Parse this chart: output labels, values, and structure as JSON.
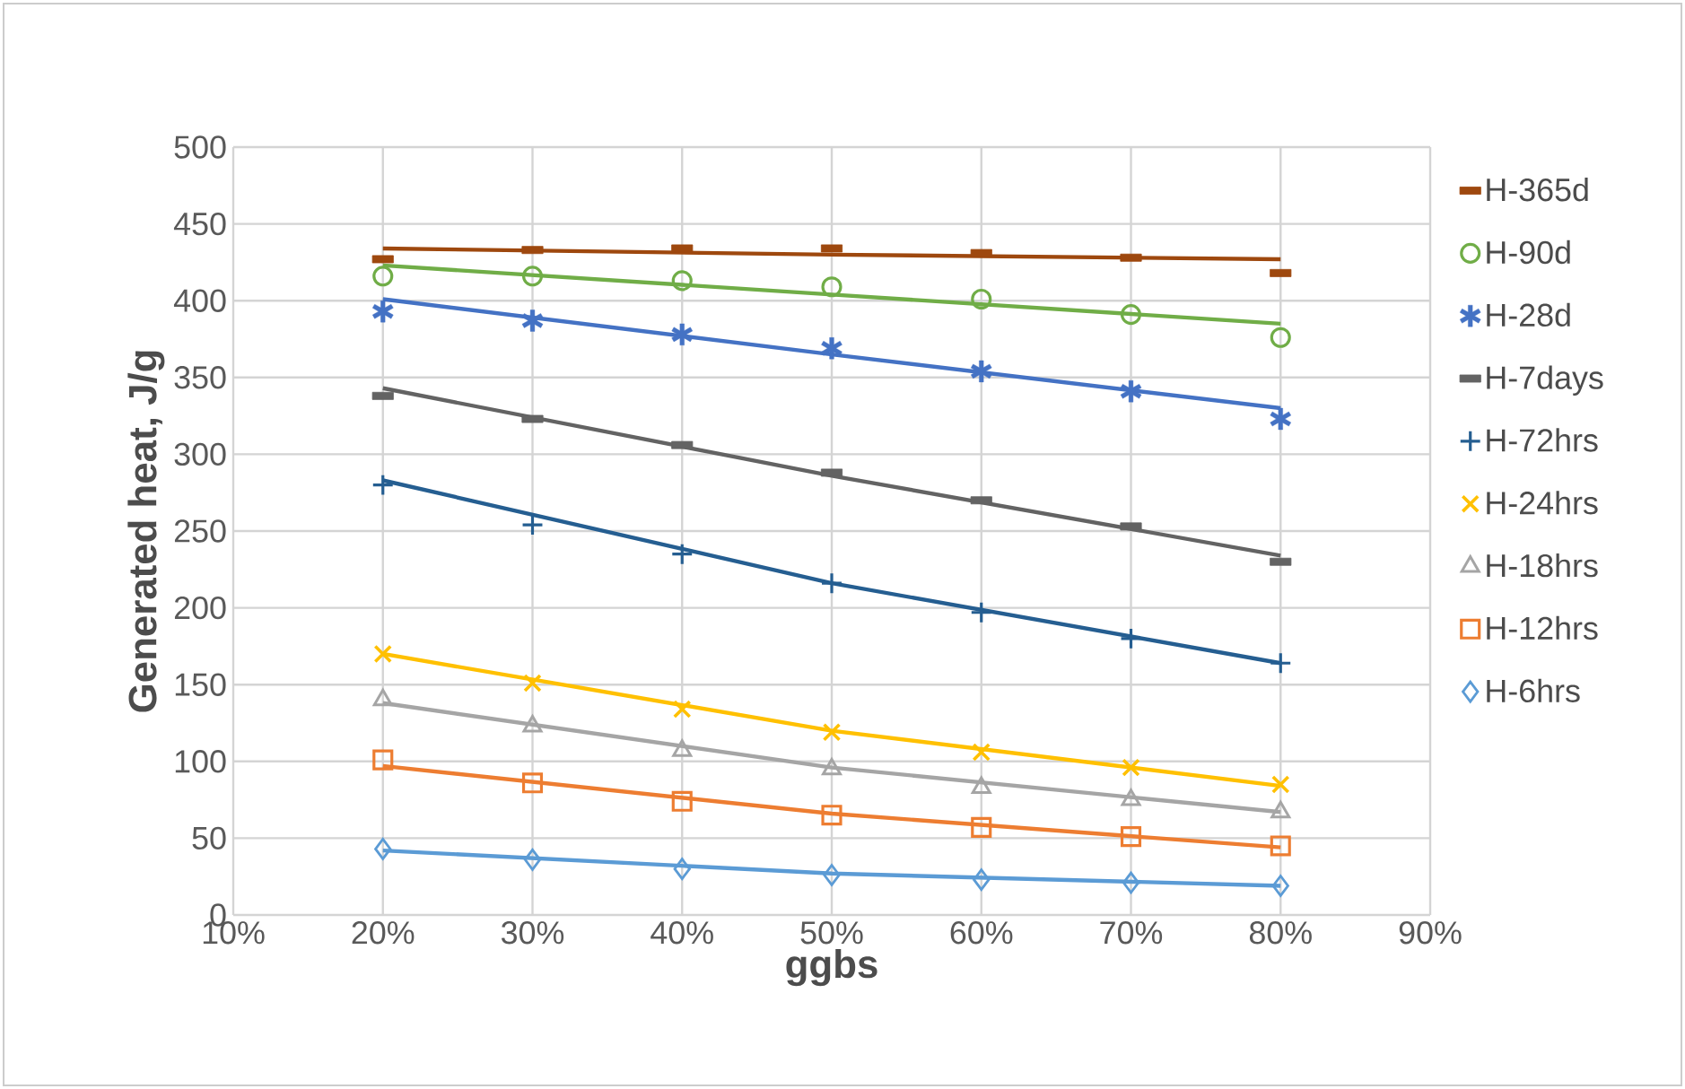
{
  "chart_data": {
    "type": "scatter",
    "xlabel": "ggbs",
    "ylabel": "Generated heat, J/g",
    "xlim": [
      10,
      90
    ],
    "xticks": [
      {
        "value": 10,
        "label": "10%"
      },
      {
        "value": 20,
        "label": "20%"
      },
      {
        "value": 30,
        "label": "30%"
      },
      {
        "value": 40,
        "label": "40%"
      },
      {
        "value": 50,
        "label": "50%"
      },
      {
        "value": 60,
        "label": "60%"
      },
      {
        "value": 70,
        "label": "70%"
      },
      {
        "value": 80,
        "label": "80%"
      },
      {
        "value": 90,
        "label": "90%"
      }
    ],
    "ylim": [
      0,
      500
    ],
    "yticks": [
      0,
      50,
      100,
      150,
      200,
      250,
      300,
      350,
      400,
      450,
      500
    ],
    "grid": true,
    "legend": "right",
    "x": [
      20,
      30,
      40,
      50,
      60,
      70,
      80
    ],
    "series": [
      {
        "name": "H-365d",
        "color": "#9e480e",
        "values": [
          427,
          433,
          434,
          434,
          431,
          428,
          418
        ]
      },
      {
        "name": "H-90d",
        "color": "#70ad47",
        "marker": "circle",
        "values": [
          416,
          416,
          413,
          409,
          401,
          391,
          376
        ]
      },
      {
        "name": "H-28d",
        "color": "#4472c4",
        "marker": "star",
        "values": [
          393,
          387,
          378,
          369,
          354,
          341,
          323
        ]
      },
      {
        "name": "H-7days",
        "color": "#636363",
        "values": [
          338,
          323,
          306,
          288,
          270,
          253,
          230
        ]
      },
      {
        "name": "H-72hrs",
        "color": "#255e91",
        "marker": "plus",
        "values": [
          280,
          254,
          235,
          216,
          197,
          180,
          164
        ]
      },
      {
        "name": "H-24hrs",
        "color": "#ffc000",
        "marker": "cross",
        "values": [
          170,
          151,
          134,
          119,
          106,
          96,
          85
        ]
      },
      {
        "name": "H-18hrs",
        "color": "#a5a5a5",
        "marker": "triangle",
        "values": [
          140,
          123,
          107,
          95,
          83,
          75,
          67
        ]
      },
      {
        "name": "H-12hrs",
        "color": "#ed7d31",
        "marker": "square",
        "values": [
          101,
          86,
          74,
          65,
          57,
          51,
          45
        ]
      },
      {
        "name": "H-6hrs",
        "color": "#5b9bd5",
        "marker": "diamond",
        "values": [
          43,
          36,
          30,
          26,
          23,
          21,
          19
        ]
      },
      {
        "type": "line",
        "color": "#9e480e",
        "x": [
          20,
          50,
          80
        ],
        "values": [
          434,
          430,
          427
        ]
      },
      {
        "type": "line",
        "color": "#70ad47",
        "x": [
          20,
          50,
          80
        ],
        "values": [
          423,
          404,
          385
        ]
      },
      {
        "type": "line",
        "color": "#4472c4",
        "x": [
          20,
          50,
          80
        ],
        "values": [
          401,
          365,
          330
        ]
      },
      {
        "type": "line",
        "color": "#636363",
        "x": [
          20,
          50,
          80
        ],
        "values": [
          343,
          286,
          234
        ]
      },
      {
        "type": "line",
        "color": "#255e91",
        "x": [
          20,
          50,
          80
        ],
        "values": [
          283,
          216,
          164
        ]
      },
      {
        "type": "line",
        "color": "#ffc000",
        "x": [
          20,
          50,
          80
        ],
        "values": [
          170,
          120,
          84
        ]
      },
      {
        "type": "line",
        "color": "#a5a5a5",
        "x": [
          20,
          50,
          80
        ],
        "values": [
          138,
          96,
          67
        ]
      },
      {
        "type": "line",
        "color": "#ed7d31",
        "x": [
          20,
          50,
          80
        ],
        "values": [
          97,
          66,
          44
        ]
      },
      {
        "type": "line",
        "color": "#5b9bd5",
        "x": [
          20,
          50,
          80
        ],
        "values": [
          42,
          27,
          19
        ]
      }
    ]
  }
}
